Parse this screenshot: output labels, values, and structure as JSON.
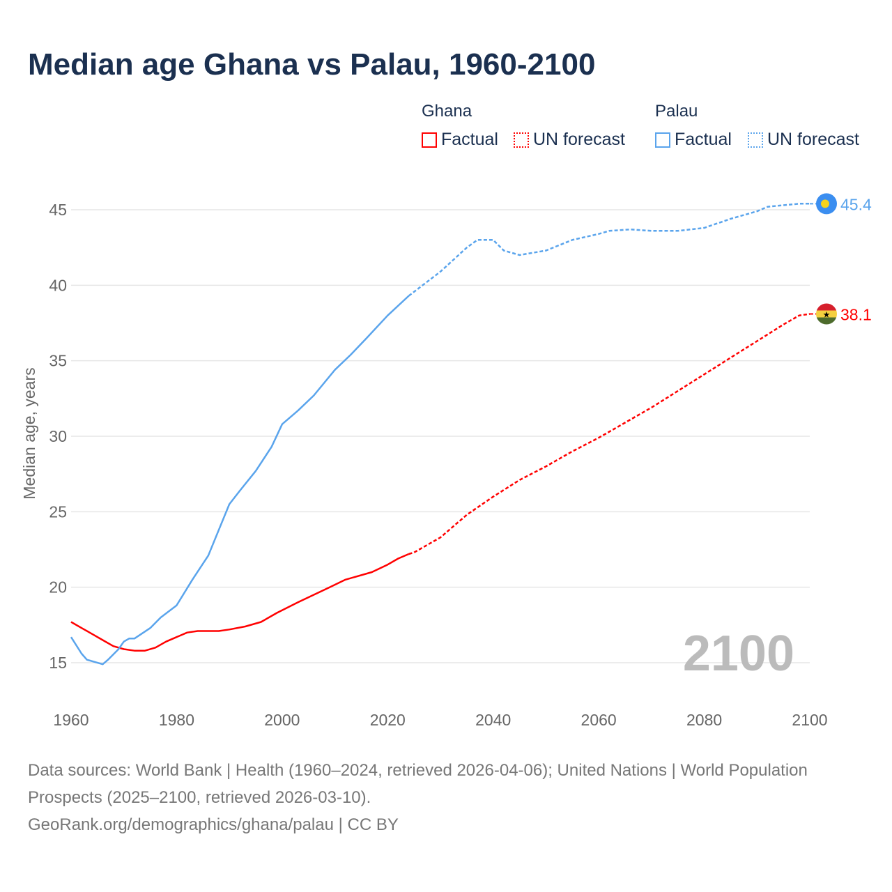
{
  "chart_data": {
    "type": "line",
    "title": "Median age Ghana vs Palau, 1960-2100",
    "ylabel": "Median age, years",
    "xlabel": "",
    "xlim": [
      1960,
      2100
    ],
    "ylim": [
      13,
      47
    ],
    "xticks": [
      "1960",
      "1980",
      "2000",
      "2020",
      "2040",
      "2060",
      "2080",
      "2100"
    ],
    "yticks": [
      "15",
      "20",
      "25",
      "30",
      "35",
      "40",
      "45"
    ],
    "current_year_label": "2100",
    "legend": {
      "groups": [
        {
          "name": "Ghana",
          "items": [
            "Factual",
            "UN forecast"
          ]
        },
        {
          "name": "Palau",
          "items": [
            "Factual",
            "UN forecast"
          ]
        }
      ]
    },
    "series": [
      {
        "name": "Ghana",
        "color": "#ff0000",
        "end_label": "38.1",
        "factual": [
          [
            1960,
            17.7
          ],
          [
            1962,
            17.3
          ],
          [
            1964,
            16.9
          ],
          [
            1966,
            16.5
          ],
          [
            1968,
            16.1
          ],
          [
            1970,
            15.9
          ],
          [
            1972,
            15.8
          ],
          [
            1974,
            15.8
          ],
          [
            1976,
            16.0
          ],
          [
            1978,
            16.4
          ],
          [
            1980,
            16.7
          ],
          [
            1982,
            17.0
          ],
          [
            1984,
            17.1
          ],
          [
            1988,
            17.1
          ],
          [
            1990,
            17.2
          ],
          [
            1993,
            17.4
          ],
          [
            1996,
            17.7
          ],
          [
            1999,
            18.3
          ],
          [
            2003,
            19.0
          ],
          [
            2006,
            19.5
          ],
          [
            2009,
            20.0
          ],
          [
            2012,
            20.5
          ],
          [
            2017,
            21.0
          ],
          [
            2020,
            21.5
          ],
          [
            2022,
            21.9
          ],
          [
            2024,
            22.2
          ]
        ],
        "forecast": [
          [
            2024,
            22.2
          ],
          [
            2025,
            22.3
          ],
          [
            2030,
            23.3
          ],
          [
            2035,
            24.8
          ],
          [
            2040,
            26.0
          ],
          [
            2045,
            27.1
          ],
          [
            2050,
            28.0
          ],
          [
            2055,
            29.0
          ],
          [
            2060,
            29.9
          ],
          [
            2065,
            30.9
          ],
          [
            2070,
            31.9
          ],
          [
            2075,
            33.0
          ],
          [
            2080,
            34.1
          ],
          [
            2085,
            35.2
          ],
          [
            2090,
            36.3
          ],
          [
            2095,
            37.4
          ],
          [
            2098,
            38.0
          ],
          [
            2100,
            38.1
          ]
        ]
      },
      {
        "name": "Palau",
        "color": "#5aa4ec",
        "end_label": "45.4",
        "factual": [
          [
            1960,
            16.7
          ],
          [
            1962,
            15.6
          ],
          [
            1963,
            15.2
          ],
          [
            1966,
            14.9
          ],
          [
            1967,
            15.2
          ],
          [
            1969,
            15.9
          ],
          [
            1970,
            16.4
          ],
          [
            1971,
            16.6
          ],
          [
            1972,
            16.6
          ],
          [
            1975,
            17.3
          ],
          [
            1977,
            18.0
          ],
          [
            1980,
            18.8
          ],
          [
            1983,
            20.5
          ],
          [
            1986,
            22.1
          ],
          [
            1988,
            23.8
          ],
          [
            1990,
            25.5
          ],
          [
            1992,
            26.4
          ],
          [
            1995,
            27.7
          ],
          [
            1998,
            29.3
          ],
          [
            2000,
            30.8
          ],
          [
            2003,
            31.7
          ],
          [
            2006,
            32.7
          ],
          [
            2010,
            34.4
          ],
          [
            2013,
            35.4
          ],
          [
            2016,
            36.5
          ],
          [
            2020,
            38.0
          ],
          [
            2024,
            39.3
          ]
        ],
        "forecast": [
          [
            2024,
            39.3
          ],
          [
            2030,
            40.9
          ],
          [
            2035,
            42.5
          ],
          [
            2037,
            43.0
          ],
          [
            2040,
            43.0
          ],
          [
            2042,
            42.3
          ],
          [
            2045,
            42.0
          ],
          [
            2050,
            42.3
          ],
          [
            2055,
            43.0
          ],
          [
            2060,
            43.4
          ],
          [
            2062,
            43.6
          ],
          [
            2066,
            43.7
          ],
          [
            2070,
            43.6
          ],
          [
            2075,
            43.6
          ],
          [
            2080,
            43.8
          ],
          [
            2085,
            44.4
          ],
          [
            2090,
            44.9
          ],
          [
            2092,
            45.2
          ],
          [
            2098,
            45.4
          ],
          [
            2100,
            45.4
          ]
        ]
      }
    ]
  },
  "source": {
    "line1": "Data sources: World Bank | Health (1960–2024, retrieved 2026-04-06); United Nations | World Population Prospects (2025–2100, retrieved 2026-03-10).",
    "line2": "GeoRank.org/demographics/ghana/palau | CC BY"
  }
}
